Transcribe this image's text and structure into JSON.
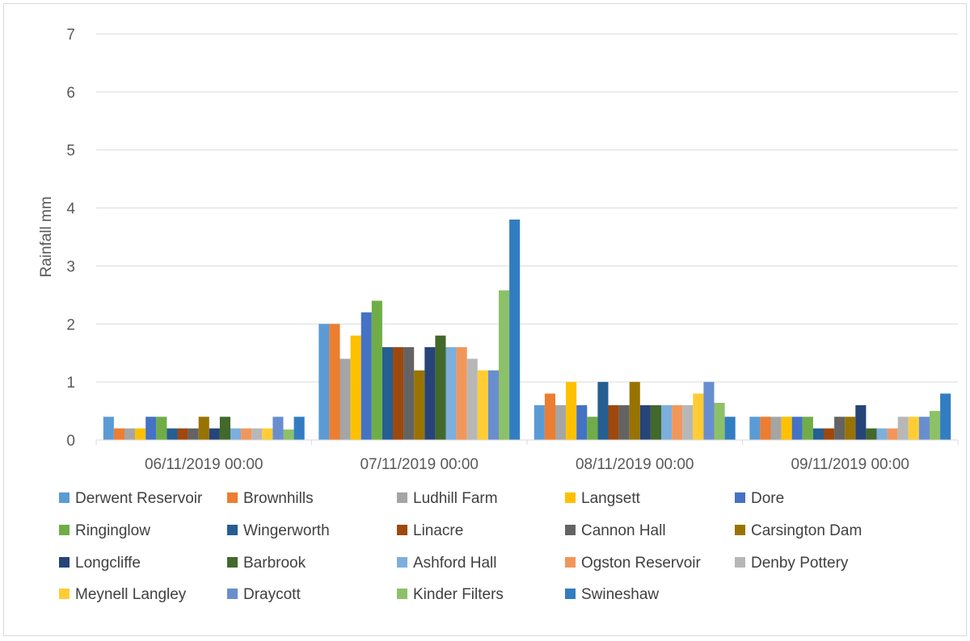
{
  "chart_data": {
    "type": "bar",
    "ylabel": "Rainfall mm",
    "ylim": [
      0,
      7
    ],
    "yticks": [
      0,
      1,
      2,
      3,
      4,
      5,
      6,
      7
    ],
    "grid": true,
    "legend_position": "bottom",
    "categories": [
      "06/11/2019 00:00",
      "07/11/2019 00:00",
      "08/11/2019 00:00",
      "09/11/2019 00:00"
    ],
    "series": [
      {
        "name": "Derwent Reservoir",
        "color": "#5b9bd5",
        "values": [
          0.4,
          2.0,
          0.6,
          0.4
        ]
      },
      {
        "name": "Brownhills",
        "color": "#ed7d31",
        "values": [
          0.2,
          2.0,
          0.8,
          0.4
        ]
      },
      {
        "name": "Ludhill Farm",
        "color": "#a5a5a5",
        "values": [
          0.2,
          1.4,
          0.6,
          0.4
        ]
      },
      {
        "name": "Langsett",
        "color": "#ffc000",
        "values": [
          0.2,
          1.8,
          1.0,
          0.4
        ]
      },
      {
        "name": "Dore",
        "color": "#4472c4",
        "values": [
          0.4,
          2.2,
          0.6,
          0.4
        ]
      },
      {
        "name": "Ringinglow",
        "color": "#70ad47",
        "values": [
          0.4,
          2.4,
          0.4,
          0.4
        ]
      },
      {
        "name": "Wingerworth",
        "color": "#255e91",
        "values": [
          0.2,
          1.6,
          1.0,
          0.2
        ]
      },
      {
        "name": "Linacre",
        "color": "#9e480e",
        "values": [
          0.2,
          1.6,
          0.6,
          0.2
        ]
      },
      {
        "name": "Cannon Hall",
        "color": "#636363",
        "values": [
          0.2,
          1.6,
          0.6,
          0.4
        ]
      },
      {
        "name": "Carsington Dam",
        "color": "#997300",
        "values": [
          0.4,
          1.2,
          1.0,
          0.4
        ]
      },
      {
        "name": "Longcliffe",
        "color": "#264478",
        "values": [
          0.2,
          1.6,
          0.6,
          0.6
        ]
      },
      {
        "name": "Barbrook",
        "color": "#43682b",
        "values": [
          0.4,
          1.8,
          0.6,
          0.2
        ]
      },
      {
        "name": "Ashford Hall",
        "color": "#7cafdd",
        "values": [
          0.2,
          1.6,
          0.6,
          0.2
        ]
      },
      {
        "name": "Ogston Reservoir",
        "color": "#f1975a",
        "values": [
          0.2,
          1.6,
          0.6,
          0.2
        ]
      },
      {
        "name": "Denby Pottery",
        "color": "#b7b7b7",
        "values": [
          0.2,
          1.4,
          0.6,
          0.4
        ]
      },
      {
        "name": "Meynell Langley",
        "color": "#ffcd33",
        "values": [
          0.2,
          1.2,
          0.8,
          0.4
        ]
      },
      {
        "name": "Draycott",
        "color": "#698ed0",
        "values": [
          0.4,
          1.2,
          1.0,
          0.4
        ]
      },
      {
        "name": "Kinder Filters",
        "color": "#8cc168",
        "values": [
          0.18,
          2.58,
          0.64,
          0.5
        ]
      },
      {
        "name": "Swineshaw",
        "color": "#327dc2",
        "values": [
          0.4,
          3.8,
          0.4,
          0.8
        ]
      }
    ]
  }
}
